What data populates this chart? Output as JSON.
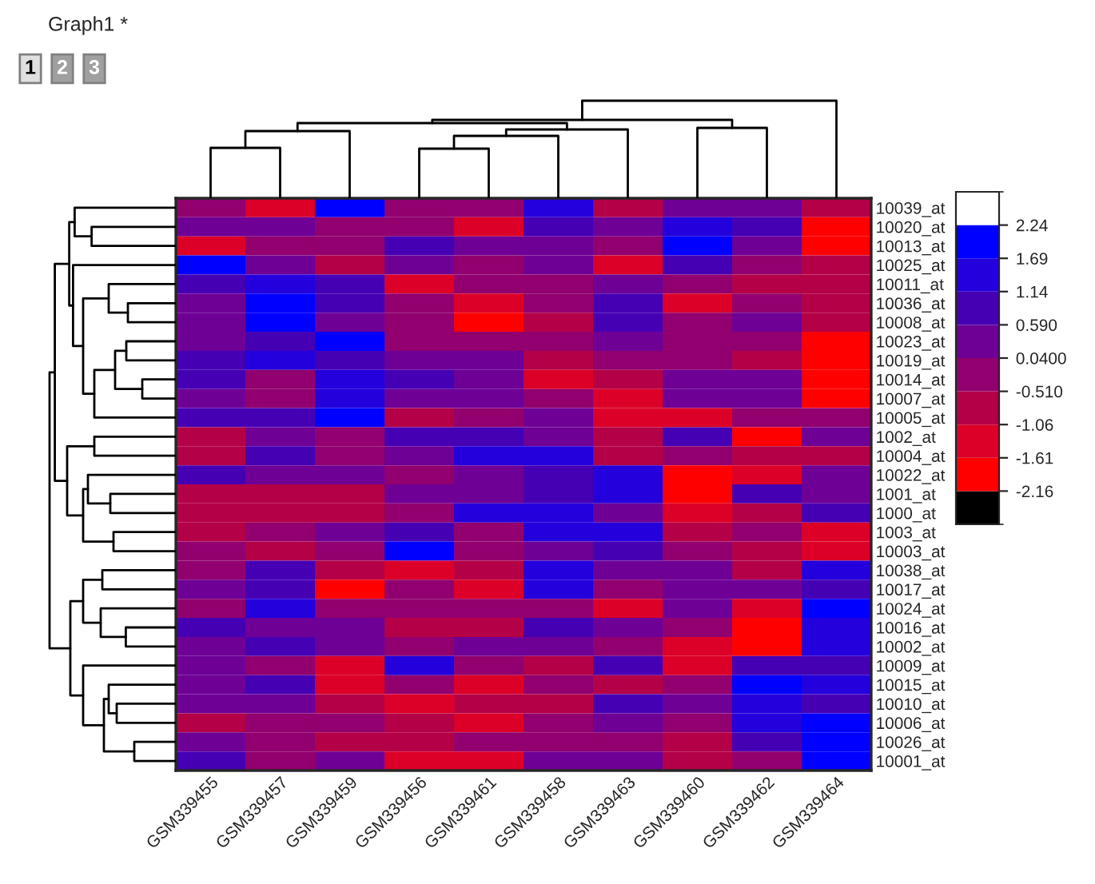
{
  "chart_data": {
    "type": "heatmap",
    "title": "Graph1 *",
    "annotations": [
      "1",
      "2",
      "3"
    ],
    "categories": [
      "GSM339455",
      "GSM339457",
      "GSM339459",
      "GSM339456",
      "GSM339461",
      "GSM339458",
      "GSM339463",
      "GSM339460",
      "GSM339462",
      "GSM339464"
    ],
    "y_categories": [
      "10039_at",
      "10020_at",
      "10013_at",
      "10025_at",
      "10011_at",
      "10036_at",
      "10008_at",
      "10023_at",
      "10019_at",
      "10014_at",
      "10007_at",
      "10005_at",
      "1002_at",
      "10004_at",
      "10022_at",
      "1001_at",
      "1000_at",
      "1003_at",
      "10003_at",
      "10038_at",
      "10017_at",
      "10024_at",
      "10016_at",
      "10002_at",
      "10009_at",
      "10015_at",
      "10010_at",
      "10006_at",
      "10026_at",
      "10001_at"
    ],
    "cells": [
      [
        -0.2,
        -1.3,
        2.0,
        -0.2,
        -0.2,
        1.4,
        -0.8,
        0.3,
        0.3,
        -0.8
      ],
      [
        0.3,
        0.3,
        -0.2,
        -0.2,
        -1.3,
        0.9,
        0.3,
        1.4,
        0.9,
        -1.9
      ],
      [
        -1.3,
        -0.2,
        -0.2,
        0.9,
        0.3,
        0.3,
        -0.2,
        2.0,
        0.3,
        -1.9
      ],
      [
        2.0,
        0.3,
        -0.8,
        0.3,
        -0.2,
        0.3,
        -1.3,
        0.9,
        -0.2,
        -0.8
      ],
      [
        0.9,
        1.4,
        0.9,
        -1.3,
        -0.2,
        -0.2,
        0.3,
        -0.2,
        -0.8,
        -0.8
      ],
      [
        0.3,
        2.0,
        0.9,
        -0.2,
        -1.3,
        -0.2,
        0.9,
        -1.3,
        -0.2,
        -0.8
      ],
      [
        0.3,
        2.0,
        0.3,
        -0.2,
        -1.9,
        -0.8,
        0.9,
        -0.2,
        0.3,
        -0.8
      ],
      [
        0.3,
        0.9,
        2.0,
        -0.2,
        -0.2,
        -0.2,
        0.3,
        -0.2,
        -0.2,
        -1.9
      ],
      [
        0.9,
        1.4,
        0.9,
        0.3,
        0.3,
        -0.8,
        -0.2,
        -0.2,
        -0.8,
        -1.9
      ],
      [
        0.9,
        -0.2,
        1.4,
        0.9,
        0.3,
        -1.3,
        -0.8,
        0.3,
        0.3,
        -1.9
      ],
      [
        0.3,
        -0.2,
        1.4,
        0.3,
        0.3,
        -0.2,
        -1.3,
        0.3,
        0.3,
        -1.9
      ],
      [
        0.9,
        0.9,
        2.0,
        -0.8,
        -0.2,
        0.3,
        -1.3,
        -1.3,
        -0.2,
        -0.2
      ],
      [
        -0.8,
        0.3,
        -0.2,
        0.9,
        0.9,
        0.3,
        -0.8,
        0.9,
        -1.9,
        0.3
      ],
      [
        -0.8,
        0.9,
        -0.2,
        0.3,
        1.4,
        1.4,
        -0.8,
        -0.2,
        -0.8,
        -0.8
      ],
      [
        0.9,
        0.3,
        0.3,
        -0.2,
        0.3,
        0.9,
        1.4,
        -1.9,
        -1.3,
        0.3
      ],
      [
        -0.8,
        -0.8,
        -0.8,
        0.3,
        0.3,
        0.9,
        1.4,
        -1.9,
        0.9,
        0.3
      ],
      [
        -0.8,
        -0.8,
        -0.8,
        -0.2,
        1.4,
        1.4,
        0.3,
        -1.3,
        -0.8,
        0.9
      ],
      [
        -0.8,
        -0.2,
        0.3,
        0.9,
        -0.2,
        1.4,
        1.4,
        -0.8,
        -0.2,
        -1.3
      ],
      [
        -0.2,
        -0.8,
        -0.2,
        2.0,
        -0.2,
        0.3,
        0.9,
        -0.2,
        -0.8,
        -1.3
      ],
      [
        -0.2,
        0.9,
        -0.8,
        -1.3,
        -0.8,
        1.4,
        0.3,
        0.3,
        -0.8,
        1.4
      ],
      [
        0.3,
        0.9,
        -1.9,
        -0.2,
        -1.3,
        1.4,
        -0.2,
        0.3,
        0.3,
        0.9
      ],
      [
        -0.2,
        1.4,
        -0.2,
        -0.2,
        -0.2,
        -0.2,
        -1.3,
        0.3,
        -1.3,
        2.0
      ],
      [
        0.9,
        0.3,
        0.3,
        -0.8,
        -0.8,
        0.9,
        0.3,
        -0.2,
        -1.9,
        1.4
      ],
      [
        0.3,
        0.9,
        0.3,
        -0.2,
        0.3,
        0.3,
        -0.2,
        -1.3,
        -1.9,
        1.4
      ],
      [
        0.3,
        -0.2,
        -1.3,
        1.4,
        -0.2,
        -0.8,
        0.9,
        -1.3,
        0.9,
        0.9
      ],
      [
        0.3,
        0.9,
        -1.3,
        -0.2,
        -1.3,
        -0.2,
        -0.8,
        -0.2,
        2.0,
        1.4
      ],
      [
        0.3,
        0.3,
        -0.8,
        -1.3,
        -0.8,
        -0.8,
        0.9,
        0.3,
        1.4,
        0.9
      ],
      [
        -0.8,
        -0.2,
        -0.2,
        -0.8,
        -1.3,
        -0.2,
        0.3,
        -0.2,
        1.4,
        2.0
      ],
      [
        0.3,
        -0.2,
        -0.8,
        -0.8,
        -0.2,
        -0.2,
        -0.2,
        -0.8,
        0.9,
        2.0
      ],
      [
        0.9,
        -0.2,
        0.3,
        -1.3,
        -1.3,
        0.3,
        0.3,
        -0.8,
        -0.2,
        2.0
      ]
    ],
    "clim": [
      -2.71,
      2.79
    ],
    "cticks": [
      {
        "value": 2.24,
        "label": "2.24"
      },
      {
        "value": 1.69,
        "label": "1.69"
      },
      {
        "value": 1.14,
        "label": "1.14"
      },
      {
        "value": 0.59,
        "label": "0.590"
      },
      {
        "value": 0.04,
        "label": "0.0400"
      },
      {
        "value": -0.51,
        "label": "-0.510"
      },
      {
        "value": -1.06,
        "label": "-1.06"
      },
      {
        "value": -1.61,
        "label": "-1.61"
      },
      {
        "value": -2.16,
        "label": "-2.16"
      }
    ]
  }
}
